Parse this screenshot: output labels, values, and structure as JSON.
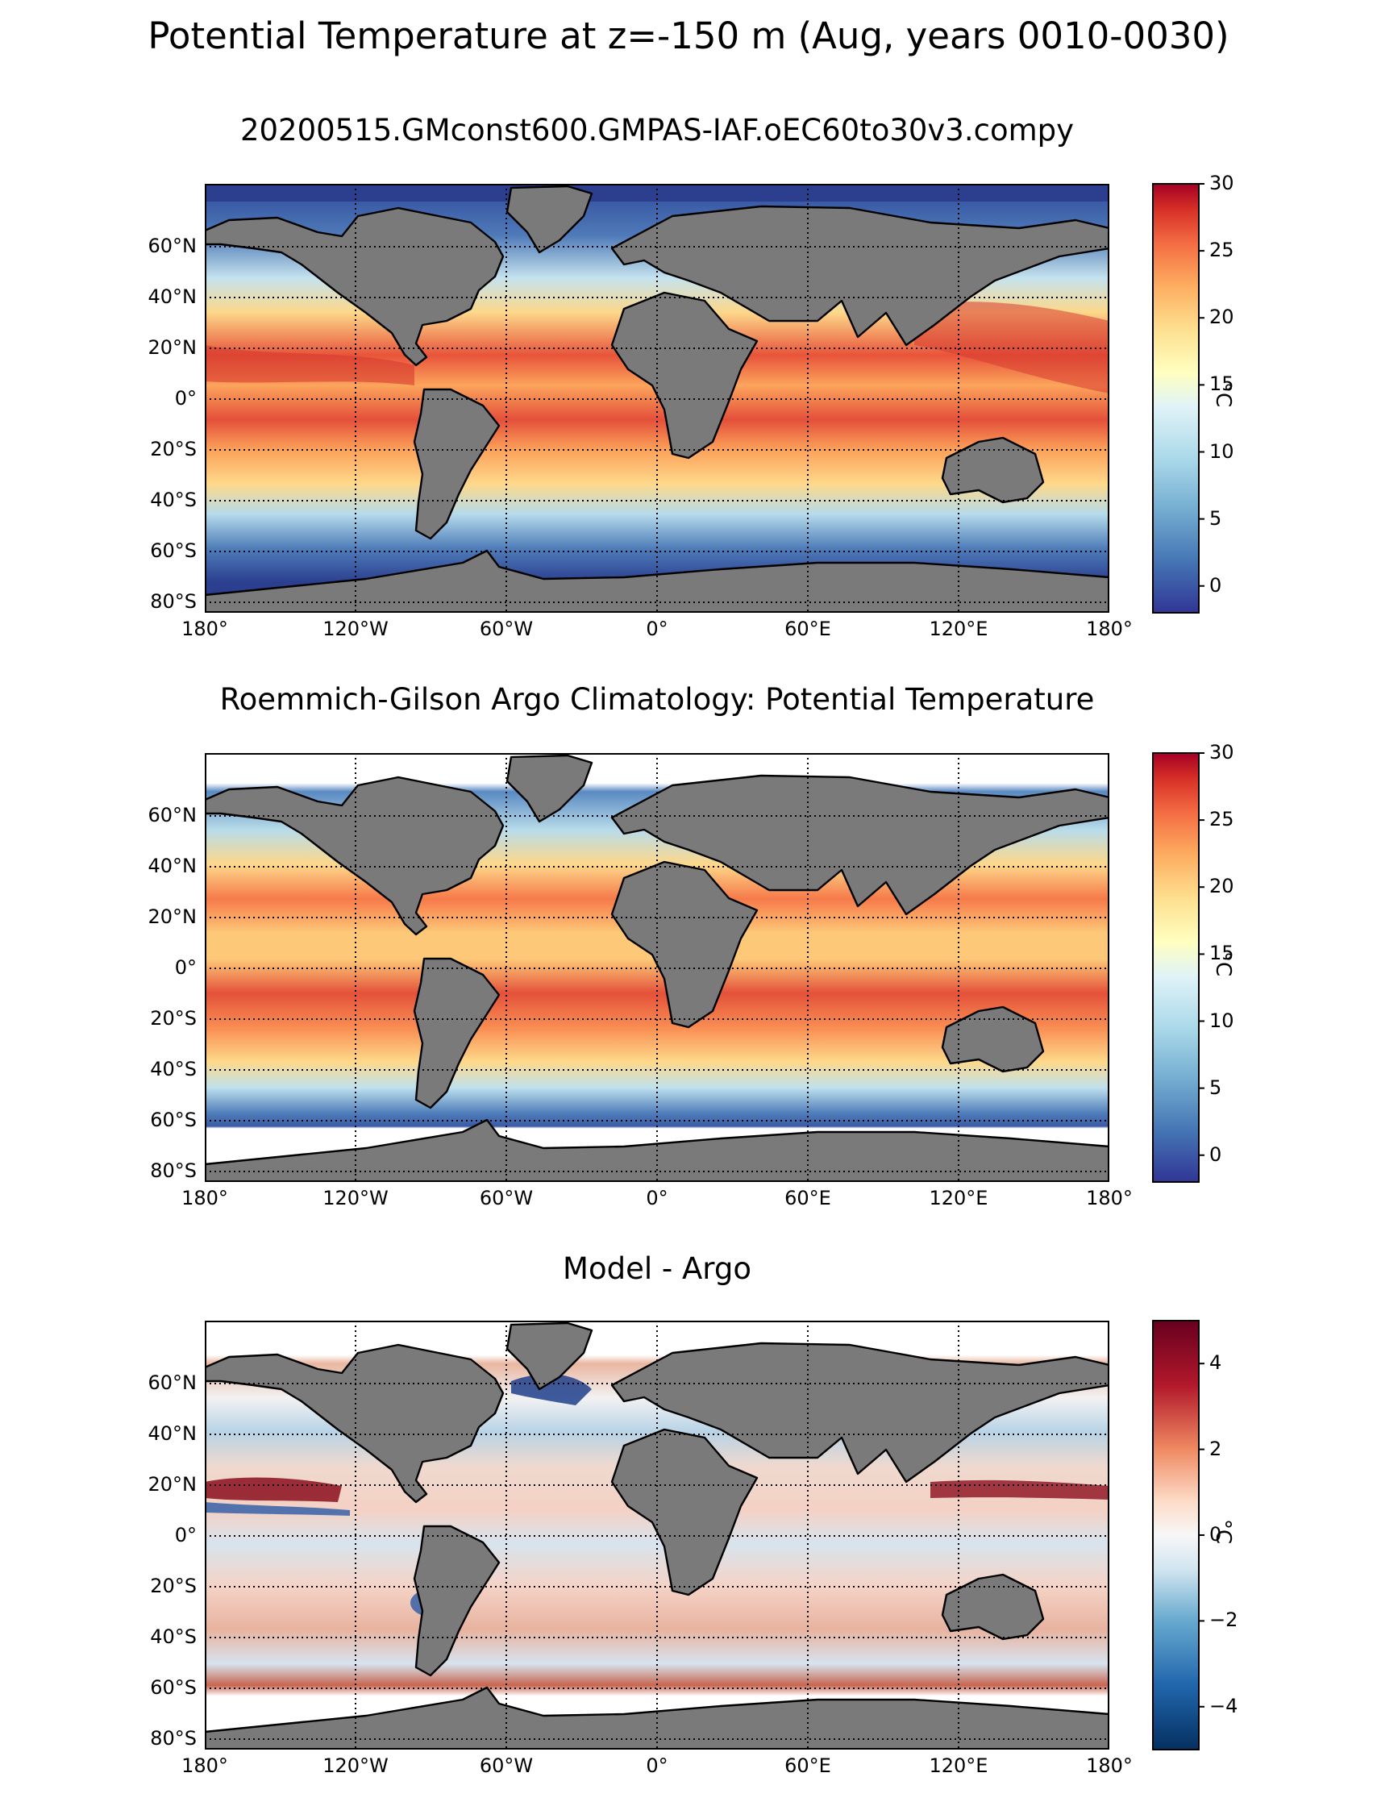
{
  "figure": {
    "title": "Potential Temperature at z=-150 m (Aug, years 0010-0030)"
  },
  "map": {
    "lon_ticks": [
      "180°",
      "120°W",
      "60°W",
      "0°",
      "60°E",
      "120°E",
      "180°"
    ],
    "lat_ticks": [
      "60°N",
      "40°N",
      "20°N",
      "0°",
      "20°S",
      "40°S",
      "60°S",
      "80°S"
    ],
    "gridlines": true,
    "land_color": "#7a7a7a",
    "nodata_color": "#ffffff"
  },
  "panels": [
    {
      "title": "20200515.GMconst600.GMPAS-IAF.oEC60to30v3.compy",
      "colormap": "RdYlBu_r",
      "colorbar": {
        "label": "°C",
        "vmin": -2,
        "vmax": 30,
        "ticks": [
          "30",
          "25",
          "20",
          "15",
          "10",
          "5",
          "0"
        ]
      }
    },
    {
      "title": "Roemmich-Gilson Argo Climatology: Potential Temperature",
      "colormap": "RdYlBu_r",
      "colorbar": {
        "label": "°C",
        "vmin": -2,
        "vmax": 30,
        "ticks": [
          "30",
          "25",
          "20",
          "15",
          "10",
          "5",
          "0"
        ]
      }
    },
    {
      "title": "Model - Argo",
      "colormap": "RdBu_r",
      "colorbar": {
        "label": "°C",
        "vmin": -5,
        "vmax": 5,
        "ticks": [
          "4",
          "2",
          "0",
          "−2",
          "−4"
        ]
      }
    }
  ]
}
